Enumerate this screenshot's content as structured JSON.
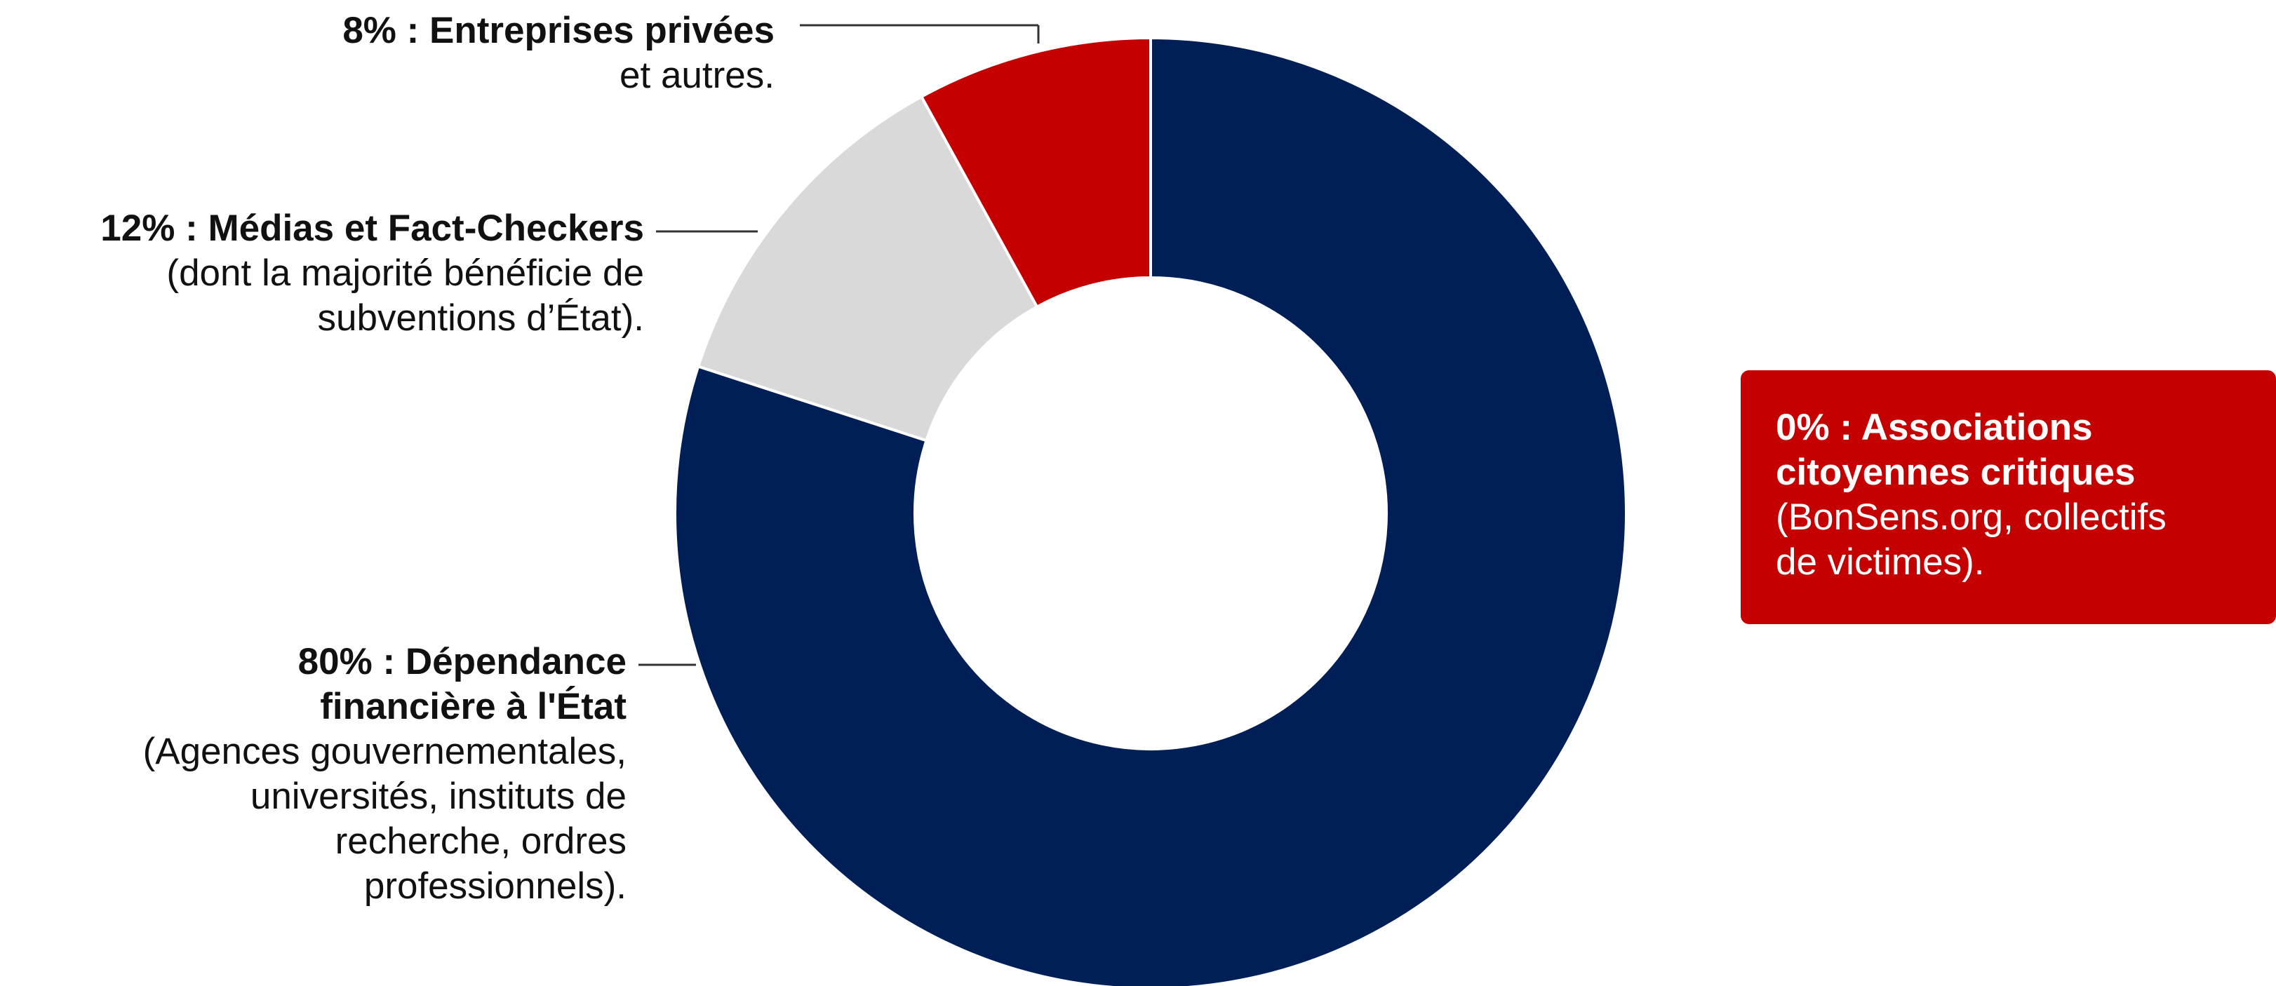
{
  "chart_data": {
    "type": "pie",
    "variant": "donut",
    "slices": [
      {
        "key": "state",
        "value": 80,
        "color": "#001f56"
      },
      {
        "key": "media",
        "value": 12,
        "color": "#d9d9d9"
      },
      {
        "key": "private",
        "value": 8,
        "color": "#c40000"
      }
    ],
    "direction": "clockwise from top",
    "slice_border_color": "#ffffff"
  },
  "labels": {
    "private": {
      "head": "8% : Entreprises privées",
      "desc": "et autres."
    },
    "media": {
      "head": "12% : Médias et Fact-Checkers",
      "desc1": "(dont la majorité bénéficie de",
      "desc2": "subventions d’État)."
    },
    "state": {
      "head1": "80% : Dépendance",
      "head2": "financière à l'État",
      "desc1": "(Agences gouvernementales,",
      "desc2": "universités, instituts de",
      "desc3": "recherche, ordres",
      "desc4": "professionnels)."
    }
  },
  "callout": {
    "head1": "0% : Associations",
    "head2": "citoyennes critiques",
    "desc1": "(BonSens.org, collectifs",
    "desc2": "de victimes).",
    "color": "#c40000"
  }
}
